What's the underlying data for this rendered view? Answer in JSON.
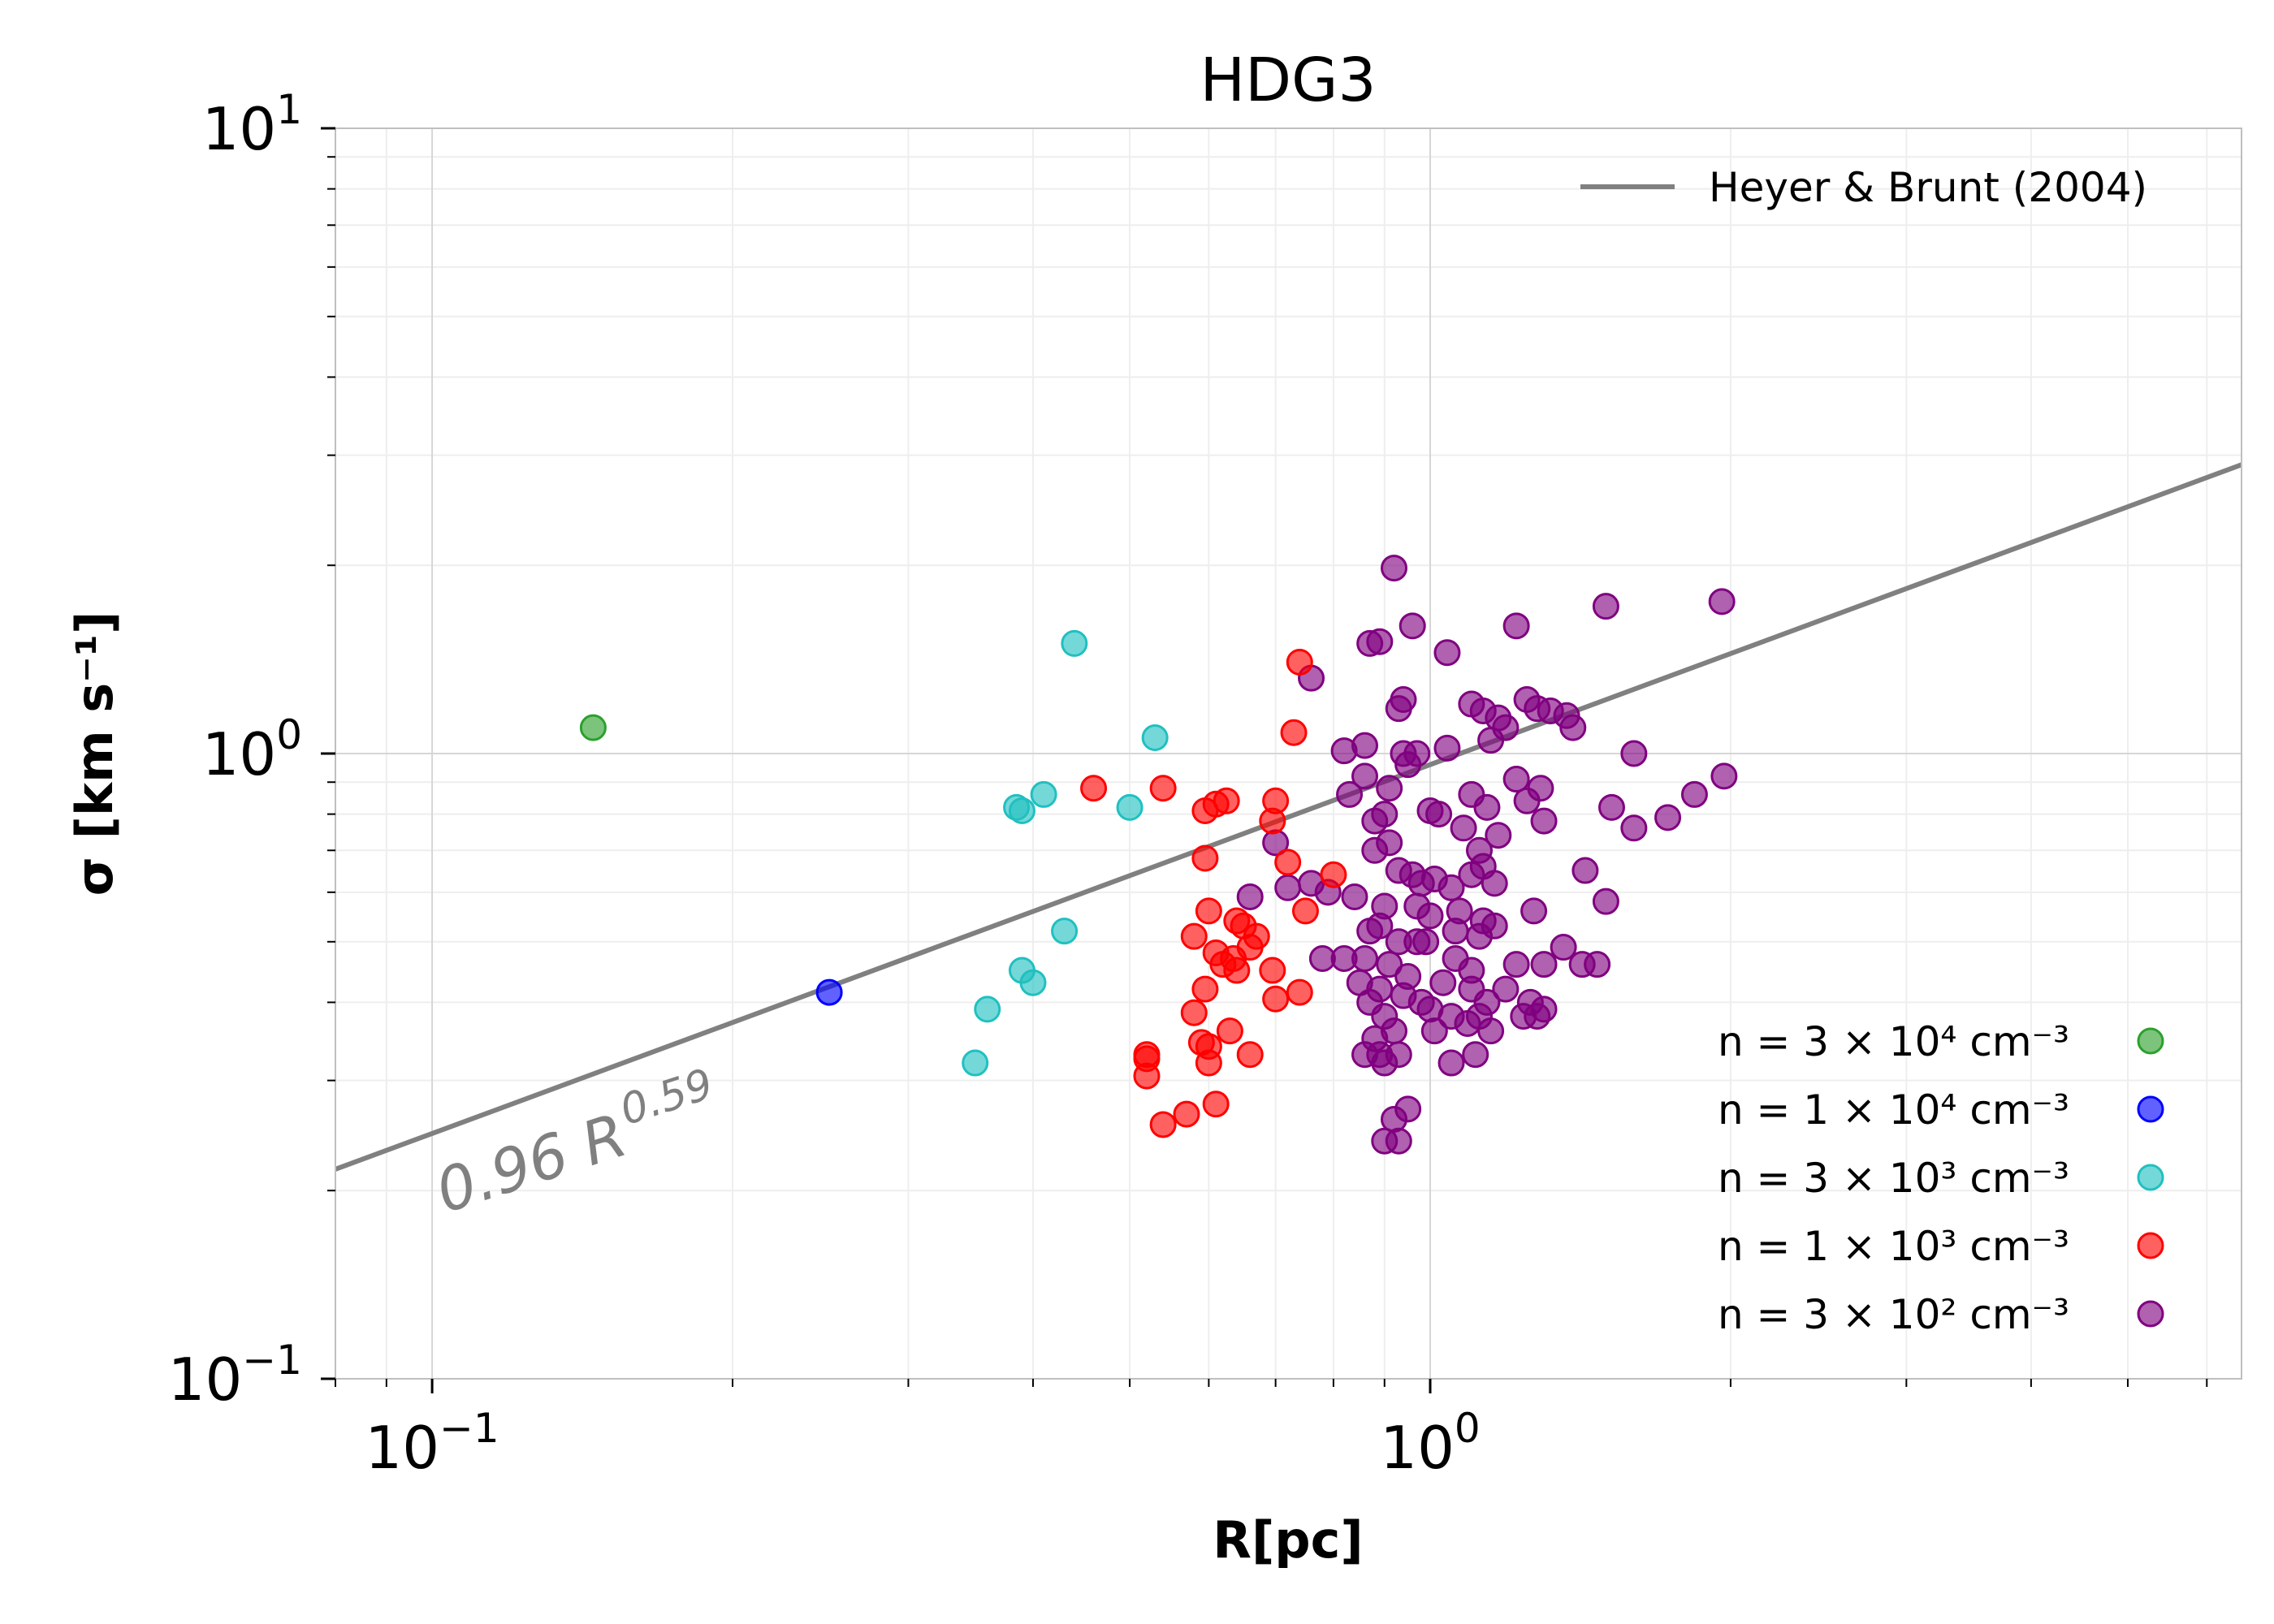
{
  "chart_data": {
    "type": "scatter",
    "title": "HDG3",
    "xlabel": "R[pc]",
    "ylabel": "σ [km s⁻¹]",
    "xscale": "log",
    "yscale": "log",
    "xlim": [
      0.08,
      6.5
    ],
    "ylim": [
      0.1,
      10
    ],
    "x_ticks": [
      {
        "base": "10",
        "exp": "−1",
        "value": 0.1
      },
      {
        "base": "10",
        "exp": "0",
        "value": 1
      }
    ],
    "y_ticks": [
      {
        "base": "10",
        "exp": "−1",
        "value": 0.1
      },
      {
        "base": "10",
        "exp": "0",
        "value": 1
      },
      {
        "base": "10",
        "exp": "1",
        "value": 10
      }
    ],
    "grid": true,
    "fit_line": {
      "label": "Heyer & Brunt (2004)",
      "coefficient": 0.96,
      "exponent": 0.59,
      "color": "#808080"
    },
    "annotation": {
      "text": "0.96 R",
      "sup": "0.59"
    },
    "legend_position": "top-right",
    "series": [
      {
        "label": "n = 3 × 10⁴ cm⁻³",
        "color": "#2ca02c",
        "points": [
          [
            0.145,
            1.1
          ]
        ]
      },
      {
        "label": "n = 1 × 10⁴ cm⁻³",
        "color": "#0000ff",
        "points": [
          [
            0.25,
            0.415
          ]
        ]
      },
      {
        "label": "n = 3 × 10³ cm⁻³",
        "color": "#20c0c0",
        "points": [
          [
            0.44,
            1.5
          ],
          [
            0.53,
            1.06
          ],
          [
            0.5,
            0.82
          ],
          [
            0.41,
            0.86
          ],
          [
            0.385,
            0.82
          ],
          [
            0.39,
            0.81
          ],
          [
            0.43,
            0.52
          ],
          [
            0.39,
            0.45
          ],
          [
            0.4,
            0.43
          ],
          [
            0.36,
            0.39
          ],
          [
            0.35,
            0.32
          ]
        ]
      },
      {
        "label": "n = 1 × 10³ cm⁻³",
        "color": "#ff0000",
        "points": [
          [
            0.46,
            0.88
          ],
          [
            0.54,
            0.88
          ],
          [
            0.595,
            0.81
          ],
          [
            0.61,
            0.83
          ],
          [
            0.625,
            0.84
          ],
          [
            0.7,
            0.84
          ],
          [
            0.695,
            0.78
          ],
          [
            0.74,
            1.4
          ],
          [
            0.73,
            1.08
          ],
          [
            0.595,
            0.68
          ],
          [
            0.72,
            0.67
          ],
          [
            0.8,
            0.64
          ],
          [
            0.75,
            0.56
          ],
          [
            0.6,
            0.56
          ],
          [
            0.58,
            0.51
          ],
          [
            0.64,
            0.54
          ],
          [
            0.65,
            0.53
          ],
          [
            0.67,
            0.51
          ],
          [
            0.61,
            0.48
          ],
          [
            0.635,
            0.47
          ],
          [
            0.66,
            0.49
          ],
          [
            0.62,
            0.46
          ],
          [
            0.64,
            0.45
          ],
          [
            0.695,
            0.45
          ],
          [
            0.74,
            0.415
          ],
          [
            0.7,
            0.405
          ],
          [
            0.595,
            0.42
          ],
          [
            0.58,
            0.385
          ],
          [
            0.63,
            0.36
          ],
          [
            0.59,
            0.345
          ],
          [
            0.6,
            0.34
          ],
          [
            0.66,
            0.33
          ],
          [
            0.6,
            0.32
          ],
          [
            0.52,
            0.33
          ],
          [
            0.52,
            0.325
          ],
          [
            0.52,
            0.305
          ],
          [
            0.61,
            0.275
          ],
          [
            0.57,
            0.265
          ],
          [
            0.54,
            0.255
          ]
        ]
      },
      {
        "label": "n = 3 × 10² cm⁻³",
        "color": "#800080",
        "points": [
          [
            0.92,
            1.98
          ],
          [
            0.87,
            1.5
          ],
          [
            0.89,
            1.51
          ],
          [
            0.96,
            1.6
          ],
          [
            0.76,
            1.32
          ],
          [
            1.04,
            1.45
          ],
          [
            1.22,
            1.6
          ],
          [
            1.5,
            1.72
          ],
          [
            1.96,
            1.75
          ],
          [
            0.94,
            1.22
          ],
          [
            0.93,
            1.18
          ],
          [
            1.1,
            1.2
          ],
          [
            1.13,
            1.17
          ],
          [
            1.17,
            1.14
          ],
          [
            1.25,
            1.22
          ],
          [
            1.28,
            1.18
          ],
          [
            1.32,
            1.17
          ],
          [
            1.19,
            1.1
          ],
          [
            1.37,
            1.15
          ],
          [
            1.39,
            1.1
          ],
          [
            0.82,
            1.01
          ],
          [
            0.86,
            1.03
          ],
          [
            0.94,
            1.0
          ],
          [
            0.97,
            1.0
          ],
          [
            1.04,
            1.02
          ],
          [
            1.15,
            1.05
          ],
          [
            1.6,
            1.0
          ],
          [
            1.97,
            0.92
          ],
          [
            0.83,
            0.86
          ],
          [
            0.86,
            0.92
          ],
          [
            0.91,
            0.88
          ],
          [
            0.95,
            0.96
          ],
          [
            0.9,
            0.8
          ],
          [
            0.88,
            0.78
          ],
          [
            1.0,
            0.81
          ],
          [
            1.02,
            0.8
          ],
          [
            1.1,
            0.86
          ],
          [
            1.14,
            0.82
          ],
          [
            1.22,
            0.91
          ],
          [
            1.25,
            0.84
          ],
          [
            1.29,
            0.88
          ],
          [
            1.3,
            0.78
          ],
          [
            1.52,
            0.82
          ],
          [
            1.6,
            0.76
          ],
          [
            1.73,
            0.79
          ],
          [
            1.84,
            0.86
          ],
          [
            0.7,
            0.72
          ],
          [
            0.88,
            0.7
          ],
          [
            0.91,
            0.72
          ],
          [
            1.08,
            0.76
          ],
          [
            1.12,
            0.7
          ],
          [
            1.17,
            0.74
          ],
          [
            0.93,
            0.65
          ],
          [
            0.96,
            0.64
          ],
          [
            0.98,
            0.62
          ],
          [
            1.01,
            0.63
          ],
          [
            1.05,
            0.61
          ],
          [
            1.1,
            0.64
          ],
          [
            1.13,
            0.66
          ],
          [
            1.16,
            0.62
          ],
          [
            0.66,
            0.59
          ],
          [
            0.72,
            0.61
          ],
          [
            0.76,
            0.62
          ],
          [
            0.79,
            0.6
          ],
          [
            0.84,
            0.59
          ],
          [
            0.9,
            0.57
          ],
          [
            0.97,
            0.57
          ],
          [
            1.0,
            0.55
          ],
          [
            1.07,
            0.56
          ],
          [
            1.13,
            0.54
          ],
          [
            1.16,
            0.53
          ],
          [
            1.27,
            0.56
          ],
          [
            1.43,
            0.65
          ],
          [
            1.5,
            0.58
          ],
          [
            0.87,
            0.52
          ],
          [
            0.89,
            0.53
          ],
          [
            0.93,
            0.5
          ],
          [
            0.97,
            0.5
          ],
          [
            0.99,
            0.5
          ],
          [
            1.06,
            0.52
          ],
          [
            1.12,
            0.51
          ],
          [
            1.36,
            0.49
          ],
          [
            0.78,
            0.47
          ],
          [
            0.82,
            0.47
          ],
          [
            0.86,
            0.47
          ],
          [
            0.91,
            0.46
          ],
          [
            0.95,
            0.44
          ],
          [
            1.06,
            0.47
          ],
          [
            1.1,
            0.45
          ],
          [
            1.22,
            0.46
          ],
          [
            1.3,
            0.46
          ],
          [
            1.42,
            0.46
          ],
          [
            1.47,
            0.46
          ],
          [
            0.85,
            0.43
          ],
          [
            0.89,
            0.42
          ],
          [
            0.94,
            0.41
          ],
          [
            0.98,
            0.4
          ],
          [
            1.03,
            0.43
          ],
          [
            1.1,
            0.42
          ],
          [
            1.14,
            0.4
          ],
          [
            1.19,
            0.42
          ],
          [
            1.26,
            0.4
          ],
          [
            1.3,
            0.39
          ],
          [
            0.87,
            0.4
          ],
          [
            0.9,
            0.38
          ],
          [
            1.0,
            0.39
          ],
          [
            1.05,
            0.38
          ],
          [
            1.12,
            0.38
          ],
          [
            1.24,
            0.38
          ],
          [
            1.28,
            0.38
          ],
          [
            1.01,
            0.36
          ],
          [
            1.09,
            0.37
          ],
          [
            1.15,
            0.36
          ],
          [
            0.88,
            0.35
          ],
          [
            0.92,
            0.36
          ],
          [
            0.86,
            0.33
          ],
          [
            0.89,
            0.33
          ],
          [
            0.9,
            0.32
          ],
          [
            0.93,
            0.33
          ],
          [
            1.05,
            0.32
          ],
          [
            1.11,
            0.33
          ],
          [
            0.95,
            0.27
          ],
          [
            0.92,
            0.26
          ],
          [
            0.9,
            0.24
          ],
          [
            0.93,
            0.24
          ]
        ]
      }
    ]
  }
}
